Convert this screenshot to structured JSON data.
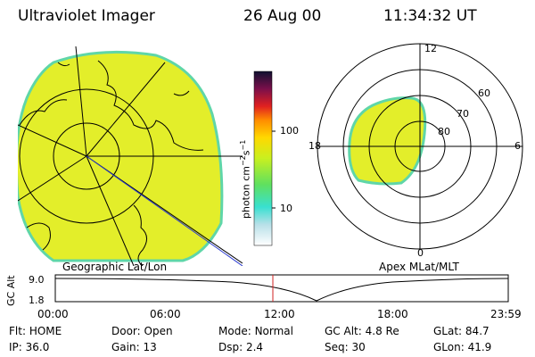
{
  "header": {
    "instrument": "Ultraviolet Imager",
    "date": "26 Aug 00",
    "time": "11:34:32 UT"
  },
  "colors": {
    "image_fill": "#e3ee2a",
    "image_edge": "#5fd6a8",
    "mlt_marker": "#d22020"
  },
  "geo_panel": {
    "label": "Geographic Lat/Lon"
  },
  "colorbar": {
    "unit_text": "photon cm",
    "unit_exp1": "−2",
    "unit_mid": "s",
    "unit_exp2": "−1",
    "ticks": [
      "100",
      "10"
    ],
    "scale": "log"
  },
  "polar_panel": {
    "label": "Apex MLat/MLT",
    "mlt_labels": {
      "top": "12",
      "bottom": "0",
      "left": "18",
      "right": "6"
    },
    "lat_labels": [
      "60",
      "70",
      "80"
    ]
  },
  "altitude_plot": {
    "ylabel": "GC Alt",
    "yticks": [
      "9.0",
      "1.8"
    ],
    "xticks": [
      "00:00",
      "06:00",
      "12:00",
      "18:00",
      "23:59"
    ],
    "current_time": "11:34"
  },
  "status": {
    "row1": [
      {
        "label": "Flt:",
        "value": "HOME"
      },
      {
        "label": "Door:",
        "value": "Open"
      },
      {
        "label": "Mode:",
        "value": "Normal"
      },
      {
        "label": "GC Alt:",
        "value": "4.8 Re"
      },
      {
        "label": "GLat:",
        "value": "84.7"
      }
    ],
    "row2": [
      {
        "label": "IP:",
        "value": "36.0"
      },
      {
        "label": "Gain:",
        "value": "13"
      },
      {
        "label": "Dsp:",
        "value": "2.4"
      },
      {
        "label": "Seq:",
        "value": "30"
      },
      {
        "label": "GLon:",
        "value": "41.9"
      }
    ]
  }
}
